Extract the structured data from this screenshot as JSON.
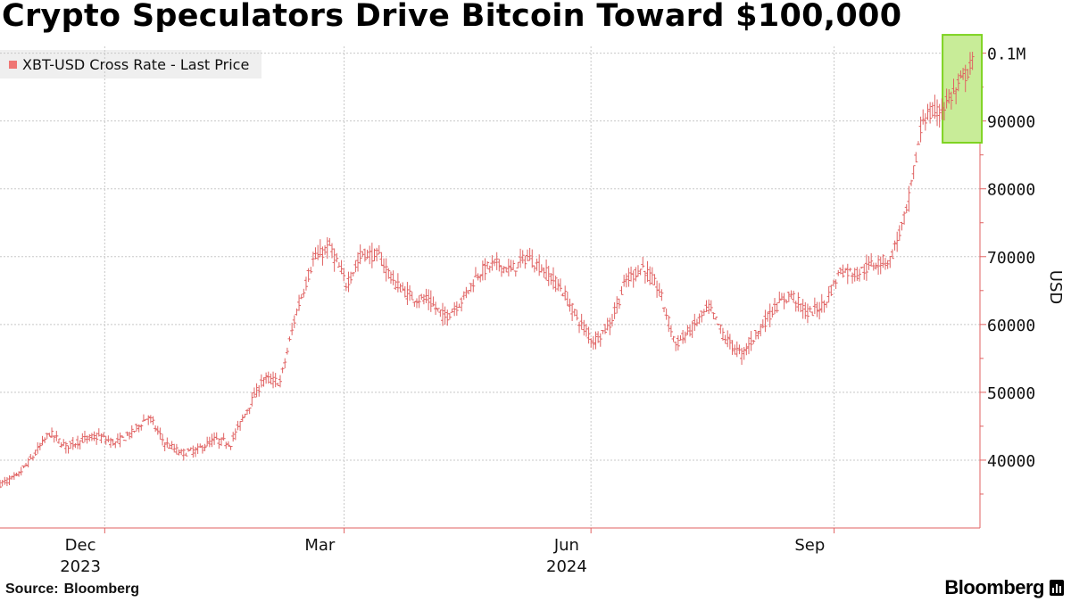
{
  "title": "Crypto Speculators Drive Bitcoin Toward $100,000",
  "legend_label": "XBT-USD Cross Rate - Last Price",
  "source_label": "Source:",
  "source_value": "Bloomberg",
  "brand": "Bloomberg",
  "colors": {
    "series": "#e06262",
    "legend_swatch": "#ef7674",
    "highlight_fill": "#c8ec98",
    "highlight_stroke": "#7ed321",
    "grid": "#c8c8c8"
  },
  "icons": {
    "brand": "bloomberg-bars-icon"
  },
  "chart_data": {
    "type": "ohlc",
    "ylabel": "USD",
    "ylim": [
      30000,
      101000
    ],
    "y_ticks": [
      {
        "value": 40000,
        "label": "40000"
      },
      {
        "value": 50000,
        "label": "50000"
      },
      {
        "value": 60000,
        "label": "60000"
      },
      {
        "value": 70000,
        "label": "70000"
      },
      {
        "value": 80000,
        "label": "80000"
      },
      {
        "value": 90000,
        "label": "90000"
      },
      {
        "value": 100000,
        "label": "0.1M"
      }
    ],
    "x_ticks": [
      {
        "label": "Dec",
        "sublabel": "2023",
        "week": 4.3
      },
      {
        "label": "Mar",
        "sublabel": "",
        "week": 17.1
      },
      {
        "label": "Jun",
        "sublabel": "2024",
        "week": 30.3
      },
      {
        "label": "Sep",
        "sublabel": "",
        "week": 43.3
      }
    ],
    "x_grid_weeks": [
      5.6,
      18.4,
      31.6,
      44.6
    ],
    "x_range_weeks": [
      0,
      52.4
    ],
    "grid": true,
    "legend_position": "top-left",
    "series": [
      {
        "name": "XBT-USD Cross Rate - Last Price",
        "note": "weekly closing values read from chart, starting mid-Nov 2023",
        "values": [
          36500,
          37500,
          40500,
          44000,
          42000,
          43000,
          43500,
          42500,
          44000,
          46500,
          42500,
          41000,
          41500,
          43000,
          42500,
          47500,
          52000,
          51500,
          62000,
          69500,
          71500,
          66000,
          70500,
          70000,
          66000,
          64000,
          63500,
          61000,
          63500,
          67500,
          69000,
          68000,
          70000,
          68000,
          65500,
          61000,
          57500,
          60000,
          66500,
          68500,
          65000,
          57000,
          59500,
          62500,
          58000,
          55500,
          59000,
          62500,
          64500,
          61500,
          63000,
          68000,
          67500,
          69000,
          69500,
          76500,
          90500,
          91500,
          94500,
          98500
        ]
      }
    ],
    "annotations": [
      {
        "type": "highlight_box",
        "from_week": 50.4,
        "to_week": 52.5,
        "y_from": 86800,
        "y_to": 102700
      }
    ]
  }
}
